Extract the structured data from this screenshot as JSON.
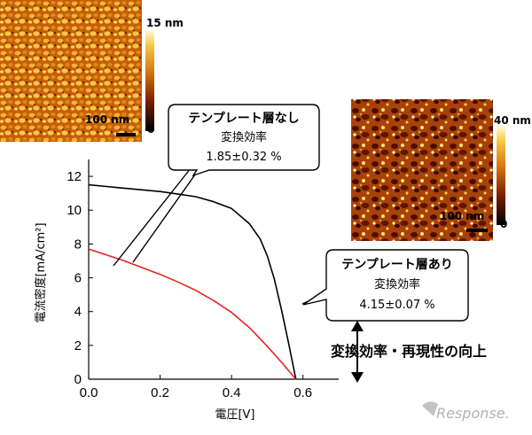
{
  "afm_images": [
    {
      "scale_bar": "100 nm",
      "colorbar_max": "15 nm",
      "colorbar_min": "0"
    },
    {
      "scale_bar": "100 nm",
      "colorbar_max": "40 nm",
      "colorbar_min": "0"
    }
  ],
  "callouts": {
    "without": {
      "title": "テンプレート層なし",
      "label": "変換効率",
      "value": "1.85±0.32 %"
    },
    "with": {
      "title": "テンプレート層あり",
      "label": "変換効率",
      "value": "4.15±0.07 %"
    }
  },
  "improvement_text": "変換効率・再現性の向上",
  "watermark": "Response.",
  "colors": {
    "without_layer": "#000000",
    "with_layer": "#e8211f",
    "afm_dark": "#3a0a00",
    "afm_light": "#ffe37a"
  },
  "chart_data": {
    "type": "line",
    "xlabel": "電圧[V]",
    "ylabel": "電流密度[mA/cm²]",
    "xlim": [
      0,
      0.7
    ],
    "ylim": [
      0,
      13
    ],
    "x_ticks": [
      "0.0",
      "0.2",
      "0.4",
      "0.6"
    ],
    "y_ticks": [
      "0",
      "2",
      "4",
      "6",
      "8",
      "10",
      "12"
    ],
    "series": [
      {
        "color": "#000000",
        "x": [
          0.0,
          0.05,
          0.1,
          0.15,
          0.2,
          0.25,
          0.3,
          0.35,
          0.4,
          0.45,
          0.48,
          0.5,
          0.52,
          0.54,
          0.56,
          0.58
        ],
        "y": [
          11.5,
          11.4,
          11.3,
          11.2,
          11.1,
          10.95,
          10.8,
          10.5,
          10.1,
          9.2,
          8.3,
          7.3,
          5.9,
          4.1,
          2.1,
          0.0
        ]
      },
      {
        "color": "#e8211f",
        "x": [
          0.0,
          0.05,
          0.1,
          0.15,
          0.2,
          0.25,
          0.3,
          0.35,
          0.4,
          0.45,
          0.5,
          0.54,
          0.56,
          0.58
        ],
        "y": [
          7.7,
          7.35,
          7.0,
          6.6,
          6.2,
          5.75,
          5.25,
          4.65,
          3.95,
          3.05,
          1.95,
          1.0,
          0.5,
          0.0
        ]
      }
    ]
  }
}
